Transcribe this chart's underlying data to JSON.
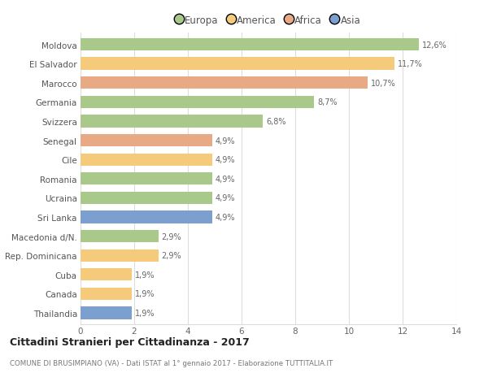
{
  "countries": [
    "Moldova",
    "El Salvador",
    "Marocco",
    "Germania",
    "Svizzera",
    "Senegal",
    "Cile",
    "Romania",
    "Ucraina",
    "Sri Lanka",
    "Macedonia d/N.",
    "Rep. Dominicana",
    "Cuba",
    "Canada",
    "Thailandia"
  ],
  "values": [
    12.6,
    11.7,
    10.7,
    8.7,
    6.8,
    4.9,
    4.9,
    4.9,
    4.9,
    4.9,
    2.9,
    2.9,
    1.9,
    1.9,
    1.9
  ],
  "labels": [
    "12,6%",
    "11,7%",
    "10,7%",
    "8,7%",
    "6,8%",
    "4,9%",
    "4,9%",
    "4,9%",
    "4,9%",
    "4,9%",
    "2,9%",
    "2,9%",
    "1,9%",
    "1,9%",
    "1,9%"
  ],
  "categories": [
    "Europa",
    "America",
    "Africa",
    "Asia"
  ],
  "continent": [
    "Europa",
    "America",
    "Africa",
    "Europa",
    "Europa",
    "Africa",
    "America",
    "Europa",
    "Europa",
    "Asia",
    "Europa",
    "America",
    "America",
    "America",
    "Asia"
  ],
  "colors": {
    "Europa": "#a8c98a",
    "America": "#f5ca7a",
    "Africa": "#e8aa85",
    "Asia": "#7b9fcf"
  },
  "legend_colors": [
    "#a8c98a",
    "#f5ca7a",
    "#e8aa85",
    "#7b9fcf"
  ],
  "title": "Cittadini Stranieri per Cittadinanza - 2017",
  "subtitle": "COMUNE DI BRUSIMPIANO (VA) - Dati ISTAT al 1° gennaio 2017 - Elaborazione TUTTITALIA.IT",
  "xlim": [
    0,
    14
  ],
  "xticks": [
    0,
    2,
    4,
    6,
    8,
    10,
    12,
    14
  ],
  "background_color": "#ffffff",
  "grid_color": "#dddddd",
  "bar_height": 0.65
}
